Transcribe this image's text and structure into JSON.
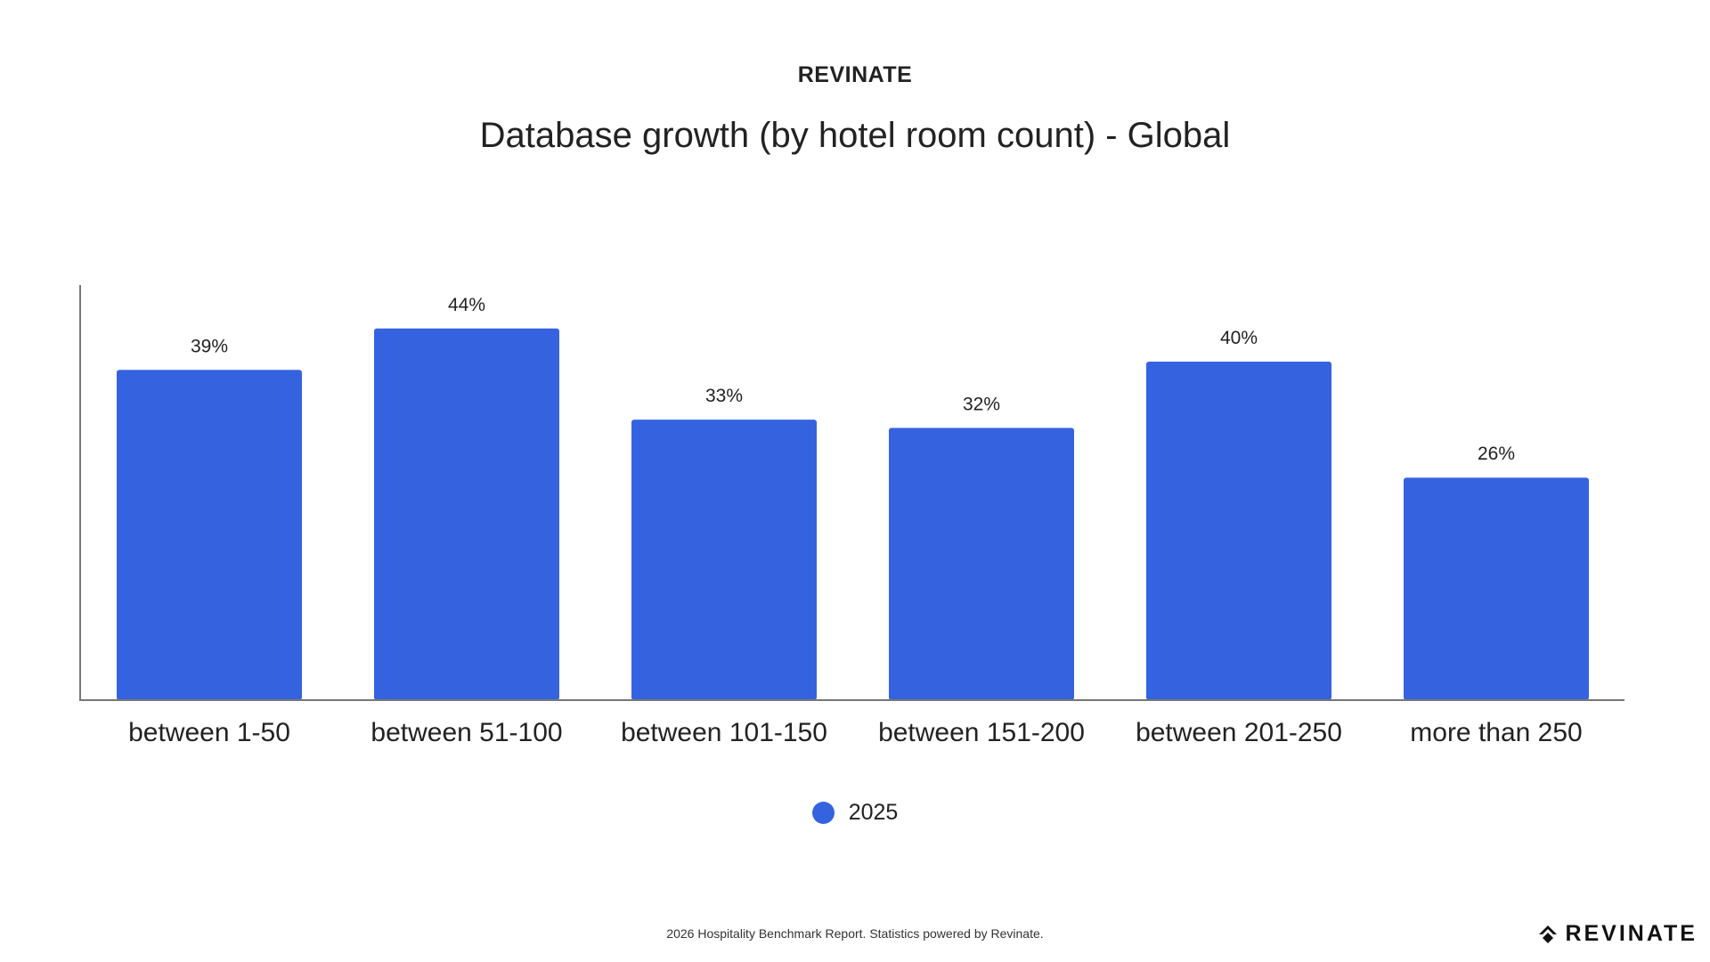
{
  "header": {
    "brand": "REVINATE"
  },
  "chart_data": {
    "type": "bar",
    "title": "Database growth (by hotel room count) - Global",
    "categories": [
      "between 1-50",
      "between 51-100",
      "between 101-150",
      "between 151-200",
      "between 201-250",
      "more than 250"
    ],
    "series": [
      {
        "name": "2025",
        "values": [
          39,
          44,
          33,
          32,
          40,
          26
        ]
      }
    ],
    "data_labels": [
      "39%",
      "44%",
      "33%",
      "32%",
      "40%",
      "26%"
    ],
    "ylim": [
      0,
      50
    ],
    "grid": false,
    "legend": "bottom-center",
    "bar_color": "#3563E0"
  },
  "footer": {
    "note": "2026 Hospitality Benchmark Report. Statistics powered by Revinate.",
    "logo_text": "REVINATE"
  }
}
